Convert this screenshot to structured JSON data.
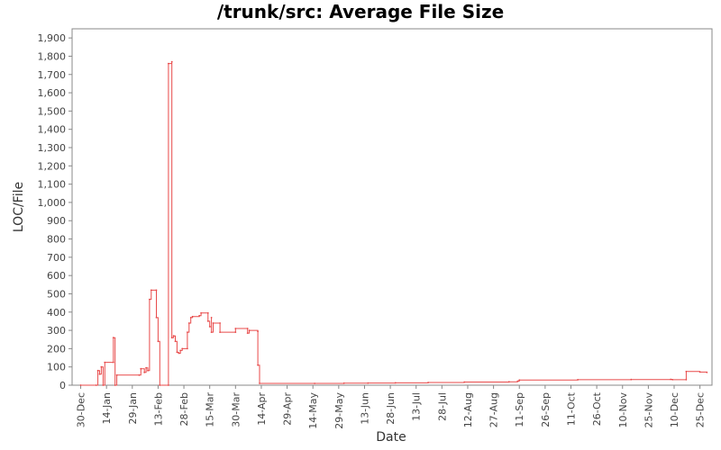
{
  "chart_data": {
    "type": "line",
    "title": "/trunk/src: Average File Size",
    "xlabel": "Date",
    "ylabel": "LOC/File",
    "ylim": [
      0,
      1950
    ],
    "xlim": [
      "2005-12-25",
      "2007-01-01"
    ],
    "grid": false,
    "line_color": "#e84a4a",
    "y_ticks": [
      {
        "value": 0,
        "label": "0"
      },
      {
        "value": 100,
        "label": "100"
      },
      {
        "value": 200,
        "label": "200"
      },
      {
        "value": 300,
        "label": "300"
      },
      {
        "value": 400,
        "label": "400"
      },
      {
        "value": 500,
        "label": "500"
      },
      {
        "value": 600,
        "label": "600"
      },
      {
        "value": 700,
        "label": "700"
      },
      {
        "value": 800,
        "label": "800"
      },
      {
        "value": 900,
        "label": "900"
      },
      {
        "value": 1000,
        "label": "1,000"
      },
      {
        "value": 1100,
        "label": "1,100"
      },
      {
        "value": 1200,
        "label": "1,200"
      },
      {
        "value": 1300,
        "label": "1,300"
      },
      {
        "value": 1400,
        "label": "1,400"
      },
      {
        "value": 1500,
        "label": "1,500"
      },
      {
        "value": 1600,
        "label": "1,600"
      },
      {
        "value": 1700,
        "label": "1,700"
      },
      {
        "value": 1800,
        "label": "1,800"
      },
      {
        "value": 1900,
        "label": "1,900"
      }
    ],
    "x_ticks": [
      {
        "date": "2005-12-30",
        "label": "30-Dec"
      },
      {
        "date": "2006-01-14",
        "label": "14-Jan"
      },
      {
        "date": "2006-01-29",
        "label": "29-Jan"
      },
      {
        "date": "2006-02-13",
        "label": "13-Feb"
      },
      {
        "date": "2006-02-28",
        "label": "28-Feb"
      },
      {
        "date": "2006-03-15",
        "label": "15-Mar"
      },
      {
        "date": "2006-03-30",
        "label": "30-Mar"
      },
      {
        "date": "2006-04-14",
        "label": "14-Apr"
      },
      {
        "date": "2006-04-29",
        "label": "29-Apr"
      },
      {
        "date": "2006-05-14",
        "label": "14-May"
      },
      {
        "date": "2006-05-29",
        "label": "29-May"
      },
      {
        "date": "2006-06-13",
        "label": "13-Jun"
      },
      {
        "date": "2006-06-28",
        "label": "28-Jun"
      },
      {
        "date": "2006-07-13",
        "label": "13-Jul"
      },
      {
        "date": "2006-07-28",
        "label": "28-Jul"
      },
      {
        "date": "2006-08-12",
        "label": "12-Aug"
      },
      {
        "date": "2006-08-27",
        "label": "27-Aug"
      },
      {
        "date": "2006-09-11",
        "label": "11-Sep"
      },
      {
        "date": "2006-09-26",
        "label": "26-Sep"
      },
      {
        "date": "2006-10-11",
        "label": "11-Oct"
      },
      {
        "date": "2006-10-26",
        "label": "26-Oct"
      },
      {
        "date": "2006-11-10",
        "label": "10-Nov"
      },
      {
        "date": "2006-11-25",
        "label": "25-Nov"
      },
      {
        "date": "2006-12-10",
        "label": "10-Dec"
      },
      {
        "date": "2006-12-25",
        "label": "25-Dec"
      }
    ],
    "series": [
      {
        "step": true,
        "points": [
          [
            "2005-12-30",
            0
          ],
          [
            "2006-01-08",
            0
          ],
          [
            "2006-01-09",
            80
          ],
          [
            "2006-01-10",
            60
          ],
          [
            "2006-01-11",
            100
          ],
          [
            "2006-01-12",
            0
          ],
          [
            "2006-01-13",
            125
          ],
          [
            "2006-01-18",
            125
          ],
          [
            "2006-01-18",
            260
          ],
          [
            "2006-01-19",
            0
          ],
          [
            "2006-01-20",
            55
          ],
          [
            "2006-02-02",
            55
          ],
          [
            "2006-02-03",
            90
          ],
          [
            "2006-02-05",
            70
          ],
          [
            "2006-02-06",
            95
          ],
          [
            "2006-02-07",
            80
          ],
          [
            "2006-02-08",
            470
          ],
          [
            "2006-02-09",
            520
          ],
          [
            "2006-02-12",
            520
          ],
          [
            "2006-02-12",
            370
          ],
          [
            "2006-02-13",
            240
          ],
          [
            "2006-02-14",
            0
          ],
          [
            "2006-02-19",
            0
          ],
          [
            "2006-02-19",
            1760
          ],
          [
            "2006-02-21",
            1770
          ],
          [
            "2006-02-21",
            260
          ],
          [
            "2006-02-22",
            270
          ],
          [
            "2006-02-23",
            240
          ],
          [
            "2006-02-24",
            180
          ],
          [
            "2006-02-25",
            175
          ],
          [
            "2006-02-26",
            190
          ],
          [
            "2006-02-27",
            200
          ],
          [
            "2006-03-02",
            200
          ],
          [
            "2006-03-02",
            290
          ],
          [
            "2006-03-03",
            340
          ],
          [
            "2006-03-04",
            370
          ],
          [
            "2006-03-05",
            375
          ],
          [
            "2006-03-09",
            380
          ],
          [
            "2006-03-10",
            395
          ],
          [
            "2006-03-14",
            395
          ],
          [
            "2006-03-14",
            350
          ],
          [
            "2006-03-15",
            320
          ],
          [
            "2006-03-16",
            370
          ],
          [
            "2006-03-16",
            290
          ],
          [
            "2006-03-17",
            340
          ],
          [
            "2006-03-21",
            340
          ],
          [
            "2006-03-21",
            290
          ],
          [
            "2006-03-30",
            290
          ],
          [
            "2006-03-30",
            310
          ],
          [
            "2006-04-06",
            310
          ],
          [
            "2006-04-06",
            285
          ],
          [
            "2006-04-07",
            300
          ],
          [
            "2006-04-12",
            295
          ],
          [
            "2006-04-12",
            110
          ],
          [
            "2006-04-13",
            10
          ],
          [
            "2006-05-15",
            10
          ],
          [
            "2006-06-01",
            11
          ],
          [
            "2006-06-15",
            12
          ],
          [
            "2006-07-01",
            13
          ],
          [
            "2006-07-20",
            15
          ],
          [
            "2006-08-10",
            17
          ],
          [
            "2006-09-05",
            18
          ],
          [
            "2006-09-10",
            22
          ],
          [
            "2006-09-11",
            28
          ],
          [
            "2006-10-15",
            30
          ],
          [
            "2006-11-15",
            31
          ],
          [
            "2006-12-08",
            32
          ],
          [
            "2006-12-09",
            30
          ],
          [
            "2006-12-17",
            30
          ],
          [
            "2006-12-17",
            75
          ],
          [
            "2006-12-25",
            72
          ],
          [
            "2006-12-29",
            70
          ]
        ]
      }
    ]
  }
}
